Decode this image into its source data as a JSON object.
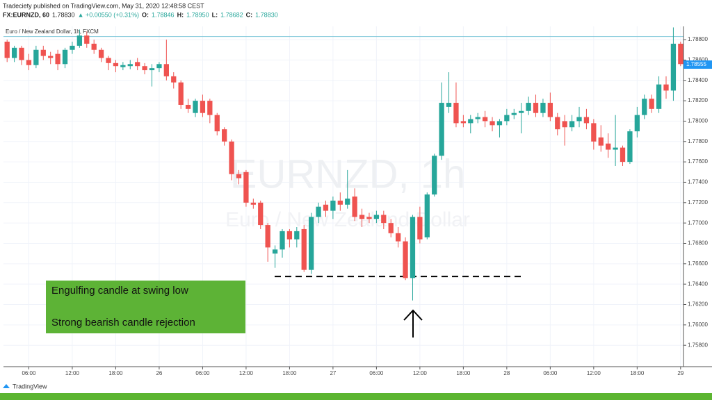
{
  "chart_data": {
    "type": "candlestick",
    "title": "Tradeciety published on TradingView.com, May 31, 2020 12:48:58 CEST",
    "symbol": "FX:EURNZD, 60",
    "last": "1.78830",
    "change": "▲ +0.00550 (+0.31%)",
    "ohlc_labels": [
      "O:",
      "1.78846",
      "H:",
      "1.78950",
      "L:",
      "1.78682",
      "C:",
      "1.78830"
    ],
    "legend": "Euro / New Zealand Dollar, 1h, FXCM",
    "watermark": "EURNZD, 1h",
    "watermark_name": "Euro / New Zealand Dollar",
    "brand": "TradingView",
    "annotations": [
      "Engulfing candle at swing low",
      "Strong bearish candle rejection"
    ],
    "up_color": "#26a69a",
    "down_color": "#ef5350",
    "price_line": 1.7883,
    "current_price": 1.78555,
    "support_level": 1.76475,
    "xlim": [
      2.5,
      96.4
    ],
    "xticks": [
      {
        "value": 6,
        "label": "06:00"
      },
      {
        "value": 12,
        "label": "12:00"
      },
      {
        "value": 18,
        "label": "18:00"
      },
      {
        "value": 24,
        "label": "26"
      },
      {
        "value": 30,
        "label": "06:00"
      },
      {
        "value": 36,
        "label": "12:00"
      },
      {
        "value": 42,
        "label": "18:00"
      },
      {
        "value": 48,
        "label": "27"
      },
      {
        "value": 54,
        "label": "06:00"
      },
      {
        "value": 60,
        "label": "12:00"
      },
      {
        "value": 66,
        "label": "18:00"
      },
      {
        "value": 72,
        "label": "28"
      },
      {
        "value": 78,
        "label": "06:00"
      },
      {
        "value": 84,
        "label": "12:00"
      },
      {
        "value": 90,
        "label": "18:00"
      },
      {
        "value": 96,
        "label": "29"
      }
    ],
    "ylim": [
      1.7559,
      1.7893
    ],
    "yticks": [
      {
        "value": 1.758,
        "label": "1.75800"
      },
      {
        "value": 1.76,
        "label": "1.76000"
      },
      {
        "value": 1.762,
        "label": "1.76200"
      },
      {
        "value": 1.764,
        "label": "1.76400"
      },
      {
        "value": 1.766,
        "label": "1.76600"
      },
      {
        "value": 1.768,
        "label": "1.76800"
      },
      {
        "value": 1.77,
        "label": "1.77000"
      },
      {
        "value": 1.772,
        "label": "1.77200"
      },
      {
        "value": 1.774,
        "label": "1.77400"
      },
      {
        "value": 1.776,
        "label": "1.77600"
      },
      {
        "value": 1.778,
        "label": "1.77800"
      },
      {
        "value": 1.78,
        "label": "1.78000"
      },
      {
        "value": 1.782,
        "label": "1.78200"
      },
      {
        "value": 1.784,
        "label": "1.78400"
      },
      {
        "value": 1.786,
        "label": "1.78600"
      },
      {
        "value": 1.788,
        "label": "1.78800"
      }
    ],
    "grid": true,
    "x": [
      3,
      4,
      5,
      6,
      7,
      8,
      9,
      10,
      11,
      12,
      13,
      14,
      15,
      16,
      17,
      18,
      19,
      20,
      21,
      22,
      23,
      24,
      25,
      26,
      27,
      28,
      29,
      30,
      31,
      32,
      33,
      34,
      35,
      36,
      37,
      38,
      39,
      40,
      41,
      42,
      43,
      44,
      45,
      46,
      47,
      48,
      49,
      50,
      51,
      52,
      53,
      54,
      55,
      56,
      57,
      58,
      59,
      60,
      61,
      62,
      63,
      64,
      65,
      66,
      67,
      68,
      69,
      70,
      71,
      72,
      73,
      74,
      75,
      76,
      77,
      78,
      79,
      80,
      81,
      82,
      83,
      84,
      85,
      86,
      87,
      88,
      89,
      90,
      91,
      92,
      93,
      94,
      95,
      96
    ],
    "open": [
      1.7878,
      1.7862,
      1.7872,
      1.786,
      1.7855,
      1.787,
      1.7864,
      1.7866,
      1.7856,
      1.787,
      1.7874,
      1.7884,
      1.7876,
      1.787,
      1.7862,
      1.7857,
      1.7853,
      1.7854,
      1.7858,
      1.7854,
      1.785,
      1.7852,
      1.7856,
      1.7844,
      1.7838,
      1.7816,
      1.7808,
      1.782,
      1.782,
      1.7806,
      1.7792,
      1.778,
      1.7748,
      1.775,
      1.772,
      1.772,
      1.7698,
      1.767,
      1.7674,
      1.7692,
      1.7684,
      1.7694,
      1.7654,
      1.7706,
      1.7718,
      1.7712,
      1.7722,
      1.7718,
      1.7726,
      1.7708,
      1.7706,
      1.7704,
      1.7708,
      1.77,
      1.769,
      1.7682,
      1.7646,
      1.7706,
      1.7686,
      1.7728,
      1.7766,
      1.7814,
      1.7818,
      1.78,
      1.7798,
      1.7802,
      1.7804,
      1.78,
      1.7796,
      1.78,
      1.7806,
      1.7808,
      1.781,
      1.7818,
      1.7808,
      1.7818,
      1.7804,
      1.78,
      1.7794,
      1.78,
      1.7804,
      1.7798,
      1.7784,
      1.7778,
      1.7772,
      1.7774,
      1.776,
      1.779,
      1.7806,
      1.7822,
      1.7812,
      1.7836,
      1.783,
      1.7876
    ],
    "high": [
      1.788,
      1.7874,
      1.7874,
      1.7866,
      1.7874,
      1.7874,
      1.7868,
      1.787,
      1.7872,
      1.7878,
      1.789,
      1.7888,
      1.788,
      1.7872,
      1.7864,
      1.786,
      1.7858,
      1.786,
      1.7862,
      1.7857,
      1.7856,
      1.7858,
      1.788,
      1.7848,
      1.784,
      1.7822,
      1.7822,
      1.7826,
      1.7822,
      1.7808,
      1.7794,
      1.7782,
      1.7752,
      1.7752,
      1.7724,
      1.7722,
      1.77,
      1.7678,
      1.7694,
      1.7694,
      1.7696,
      1.7698,
      1.771,
      1.772,
      1.7722,
      1.7726,
      1.773,
      1.7752,
      1.7734,
      1.7714,
      1.771,
      1.7712,
      1.7712,
      1.7704,
      1.7696,
      1.7686,
      1.7708,
      1.7716,
      1.773,
      1.7768,
      1.7838,
      1.7848,
      1.7838,
      1.7806,
      1.7806,
      1.7808,
      1.781,
      1.7804,
      1.7802,
      1.7812,
      1.7812,
      1.7818,
      1.7824,
      1.7826,
      1.7822,
      1.7828,
      1.7808,
      1.7806,
      1.7806,
      1.7814,
      1.7812,
      1.7802,
      1.7796,
      1.7788,
      1.7806,
      1.7776,
      1.7792,
      1.7814,
      1.7826,
      1.7826,
      1.7844,
      1.7844,
      1.7892,
      1.7878
    ],
    "low": [
      1.7858,
      1.7858,
      1.7855,
      1.785,
      1.7852,
      1.786,
      1.7856,
      1.785,
      1.7852,
      1.7866,
      1.7872,
      1.7872,
      1.7866,
      1.7858,
      1.785,
      1.7848,
      1.785,
      1.7851,
      1.785,
      1.7846,
      1.7834,
      1.7848,
      1.784,
      1.7832,
      1.7812,
      1.7808,
      1.7804,
      1.7804,
      1.7798,
      1.7786,
      1.7776,
      1.7742,
      1.7738,
      1.7716,
      1.7714,
      1.7694,
      1.7662,
      1.7656,
      1.7666,
      1.7676,
      1.7676,
      1.7652,
      1.765,
      1.77,
      1.7706,
      1.7704,
      1.7712,
      1.7714,
      1.7702,
      1.7696,
      1.77,
      1.77,
      1.7694,
      1.7686,
      1.7676,
      1.7644,
      1.7624,
      1.768,
      1.7684,
      1.7726,
      1.7762,
      1.7808,
      1.7794,
      1.7794,
      1.7788,
      1.7798,
      1.7794,
      1.779,
      1.7784,
      1.7796,
      1.7802,
      1.7788,
      1.7806,
      1.7804,
      1.7804,
      1.78,
      1.7786,
      1.7776,
      1.779,
      1.7794,
      1.7792,
      1.7772,
      1.777,
      1.7764,
      1.7756,
      1.7756,
      1.7758,
      1.7784,
      1.7802,
      1.7808,
      1.7808,
      1.7822,
      1.782,
      1.7854
    ],
    "close": [
      1.7862,
      1.7872,
      1.786,
      1.7855,
      1.787,
      1.7864,
      1.7862,
      1.7856,
      1.787,
      1.7874,
      1.7884,
      1.7876,
      1.787,
      1.7862,
      1.7857,
      1.7854,
      1.7855,
      1.7856,
      1.7854,
      1.785,
      1.7852,
      1.7856,
      1.7844,
      1.7838,
      1.7816,
      1.7812,
      1.782,
      1.7808,
      1.7806,
      1.779,
      1.778,
      1.7748,
      1.7744,
      1.772,
      1.7718,
      1.7698,
      1.7676,
      1.7674,
      1.7692,
      1.7684,
      1.7692,
      1.7654,
      1.7706,
      1.7716,
      1.7712,
      1.7722,
      1.7718,
      1.7724,
      1.7706,
      1.7704,
      1.7704,
      1.7708,
      1.77,
      1.769,
      1.7682,
      1.7646,
      1.7706,
      1.7684,
      1.7728,
      1.7766,
      1.7818,
      1.7818,
      1.7798,
      1.7798,
      1.7802,
      1.7804,
      1.78,
      1.7796,
      1.78,
      1.7806,
      1.7808,
      1.781,
      1.7818,
      1.7808,
      1.7818,
      1.7804,
      1.7792,
      1.7794,
      1.78,
      1.7804,
      1.7798,
      1.778,
      1.7776,
      1.7772,
      1.7774,
      1.776,
      1.779,
      1.7806,
      1.7822,
      1.7812,
      1.7836,
      1.783,
      1.7876,
      1.7856
    ]
  }
}
